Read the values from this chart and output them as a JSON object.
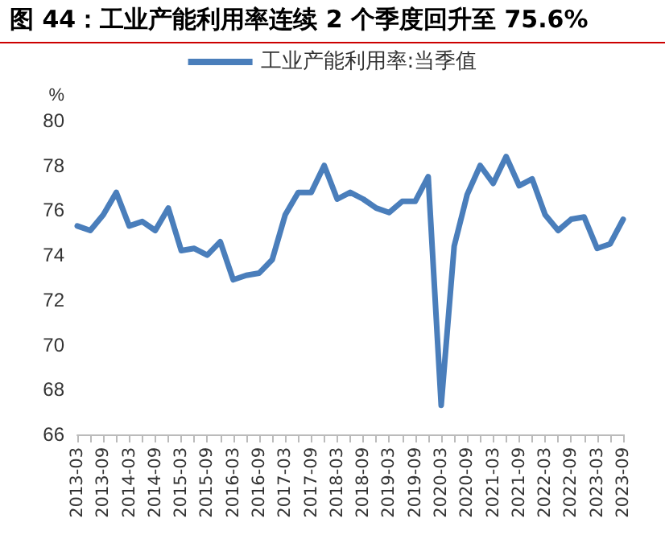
{
  "chart_data": {
    "type": "line",
    "title": "图 44：工业产能利用率连续 2 个季度回升至 75.6%",
    "ylabel": "%",
    "categories": [
      "2013-03",
      null,
      "2013-09",
      null,
      "2014-03",
      null,
      "2014-09",
      null,
      "2015-03",
      null,
      "2015-09",
      null,
      "2016-03",
      null,
      "2016-09",
      null,
      "2017-03",
      null,
      "2017-09",
      null,
      "2018-03",
      null,
      "2018-09",
      null,
      "2019-03",
      null,
      "2019-09",
      null,
      "2020-03",
      null,
      "2020-09",
      null,
      "2021-03",
      null,
      "2021-09",
      null,
      "2022-03",
      null,
      "2022-09",
      null,
      "2023-03",
      null,
      "2023-09"
    ],
    "series": [
      {
        "name": "工业产能利用率:当季值",
        "color": "#4a7ebb",
        "values": [
          75.3,
          75.1,
          75.8,
          76.8,
          75.3,
          75.5,
          75.1,
          76.1,
          74.2,
          74.3,
          74.0,
          74.6,
          72.9,
          73.1,
          73.2,
          73.8,
          75.8,
          76.8,
          76.8,
          78.0,
          76.5,
          76.8,
          76.5,
          76.1,
          75.9,
          76.4,
          76.4,
          77.5,
          67.3,
          74.4,
          76.7,
          78.0,
          77.2,
          78.4,
          77.1,
          77.4,
          75.8,
          75.1,
          75.6,
          75.7,
          74.3,
          74.5,
          75.6
        ]
      }
    ],
    "ylim": [
      66,
      80
    ],
    "yticks": [
      66,
      68,
      70,
      72,
      74,
      76,
      78,
      80
    ],
    "grid": false,
    "legend": "top",
    "marker": "none",
    "line_style": "solid"
  }
}
